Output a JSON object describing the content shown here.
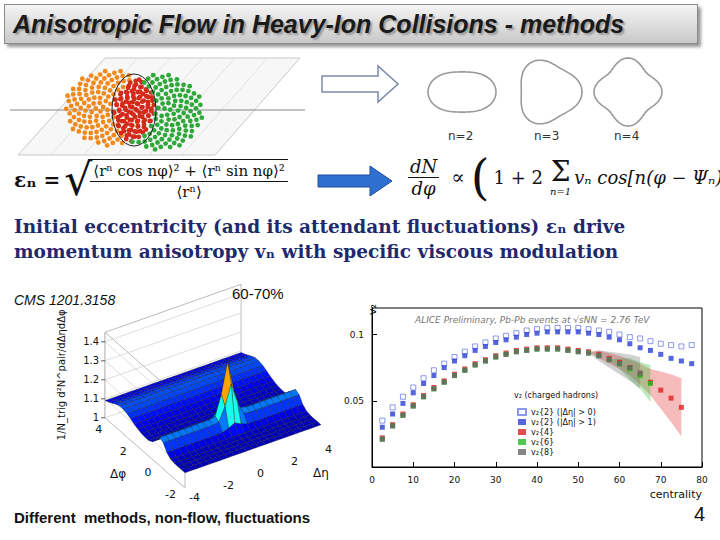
{
  "header": {
    "title": "Anisotropic Flow in Heavy-Ion Collisions - methods"
  },
  "shapes": {
    "labels": [
      "n=2",
      "n=3",
      "n=4"
    ]
  },
  "eccentricity_formula": {
    "lhs": "εₙ =",
    "root": "√",
    "numerator": "⟨rⁿ cos nφ⟩² + ⟨rⁿ sin nφ⟩²",
    "denominator": "⟨rⁿ⟩"
  },
  "flow_formula": {
    "lhs_numerator": "dN",
    "lhs_denominator": "dφ",
    "proportional": "∝",
    "left": "(",
    "start": "1 + 2",
    "sum": "Σ",
    "sum_index": "n=1",
    "term": "vₙ cos[n(φ − Ψₙ)]",
    "right": ")"
  },
  "statement": "Initial eccentricity (and its attendant fluctuations) εₙ drive momentum anisotropy vₙ with specific viscous modulation",
  "correlation_plot": {
    "citation": "CMS 1201.3158",
    "centrality": "60-70%",
    "z_label": "1/N_trig d²N^pair/dΔηdΔφ",
    "zticks": [
      1,
      1.1,
      1.2,
      1.3,
      1.4
    ],
    "dphi_label": "Δφ",
    "dphi_ticks": [
      -2,
      0,
      2,
      4
    ],
    "deta_label": "Δη",
    "deta_ticks": [
      -4,
      -2,
      0,
      2,
      4
    ]
  },
  "chart_data": {
    "type": "scatter",
    "title": "ALICE Preliminary, Pb-Pb events at √sNN = 2.76 TeV",
    "x_label": "centrality",
    "y_label": "v₂",
    "annotations": [
      "v₂ (charged hadrons)"
    ],
    "x": [
      2.5,
      5,
      7.5,
      10,
      12.5,
      15,
      17.5,
      20,
      22.5,
      25,
      27.5,
      30,
      32.5,
      35,
      37.5,
      40,
      42.5,
      45,
      47.5,
      50,
      52.5,
      55,
      57.5,
      60,
      62.5,
      65,
      67.5,
      70,
      72.5,
      75,
      77.5
    ],
    "xlim": [
      0,
      80
    ],
    "xticks": [
      0,
      10,
      20,
      30,
      40,
      50,
      60,
      70,
      80
    ],
    "ylim": [
      0,
      0.12
    ],
    "yticks": [
      0.05,
      0.1
    ],
    "grid": false,
    "legend": "lower center",
    "series": [
      {
        "name": "v₂{2} (|Δη| > 0)",
        "color": "#6f7fe0",
        "marker": "square_open",
        "values": [
          0.035,
          0.045,
          0.053,
          0.06,
          0.067,
          0.073,
          0.078,
          0.083,
          0.087,
          0.091,
          0.094,
          0.097,
          0.099,
          0.101,
          0.103,
          0.104,
          0.105,
          0.105,
          0.105,
          0.105,
          0.104,
          0.103,
          0.102,
          0.1,
          0.098,
          0.097,
          0.095,
          0.093,
          0.092,
          0.091,
          0.092
        ]
      },
      {
        "name": "v₂{2} (|Δη| > 1)",
        "color": "#2b3fd6",
        "marker": "square",
        "values": [
          0.03,
          0.04,
          0.048,
          0.056,
          0.063,
          0.069,
          0.075,
          0.08,
          0.084,
          0.088,
          0.091,
          0.094,
          0.096,
          0.098,
          0.1,
          0.101,
          0.102,
          0.102,
          0.102,
          0.102,
          0.101,
          0.1,
          0.098,
          0.096,
          0.093,
          0.09,
          0.088,
          0.085,
          0.082,
          0.08,
          0.078
        ]
      },
      {
        "name": "v₂{4}",
        "color": "#e02020",
        "marker": "square",
        "values": [
          0.022,
          0.032,
          0.04,
          0.047,
          0.054,
          0.06,
          0.065,
          0.07,
          0.074,
          0.078,
          0.081,
          0.084,
          0.086,
          0.088,
          0.089,
          0.09,
          0.09,
          0.09,
          0.089,
          0.088,
          0.087,
          0.085,
          0.082,
          0.079,
          0.075,
          0.07,
          0.064,
          0.058,
          0.052,
          0.045,
          null
        ],
        "errors": [
          0,
          0,
          0,
          0,
          0,
          0,
          0,
          0,
          0,
          0,
          0,
          0,
          0,
          0,
          0,
          0,
          0,
          0,
          0,
          0,
          0,
          0.003,
          0.004,
          0.005,
          0.006,
          0.008,
          0.01,
          0.014,
          0.018,
          0.022,
          null
        ]
      },
      {
        "name": "v₂{6}",
        "color": "#22bb22",
        "marker": "square",
        "values": [
          0.021,
          0.031,
          0.039,
          0.046,
          0.053,
          0.059,
          0.064,
          0.069,
          0.073,
          0.077,
          0.08,
          0.083,
          0.085,
          0.087,
          0.088,
          0.089,
          0.089,
          0.089,
          0.088,
          0.087,
          0.086,
          0.084,
          0.081,
          0.078,
          0.074,
          0.069,
          0.063,
          null,
          null,
          null,
          null
        ],
        "errors": [
          0,
          0,
          0,
          0,
          0,
          0,
          0,
          0,
          0,
          0,
          0,
          0,
          0,
          0,
          0,
          0,
          0,
          0,
          0,
          0,
          0,
          0,
          0,
          0.004,
          0.008,
          0.01,
          0.014,
          null,
          null,
          null,
          null
        ]
      },
      {
        "name": "v₂{8}",
        "color": "#666666",
        "marker": "square",
        "values": [
          0.021,
          0.031,
          0.039,
          0.046,
          0.053,
          0.059,
          0.064,
          0.069,
          0.073,
          0.077,
          0.08,
          0.083,
          0.085,
          0.087,
          0.088,
          0.089,
          0.089,
          0.089,
          0.088,
          0.087,
          0.086,
          0.084,
          0.081,
          0.078,
          0.075,
          0.071,
          null,
          null,
          null,
          null,
          null
        ],
        "errors": [
          0,
          0,
          0,
          0,
          0,
          0,
          0,
          0,
          0,
          0,
          0,
          0,
          0,
          0,
          0,
          0,
          0,
          0,
          0,
          0,
          0,
          0.004,
          0.006,
          0.008,
          0.01,
          0.012,
          null,
          null,
          null,
          null,
          null
        ]
      }
    ]
  },
  "footer": "Different  methods, non-flow, fluctuations",
  "page_number": 4
}
